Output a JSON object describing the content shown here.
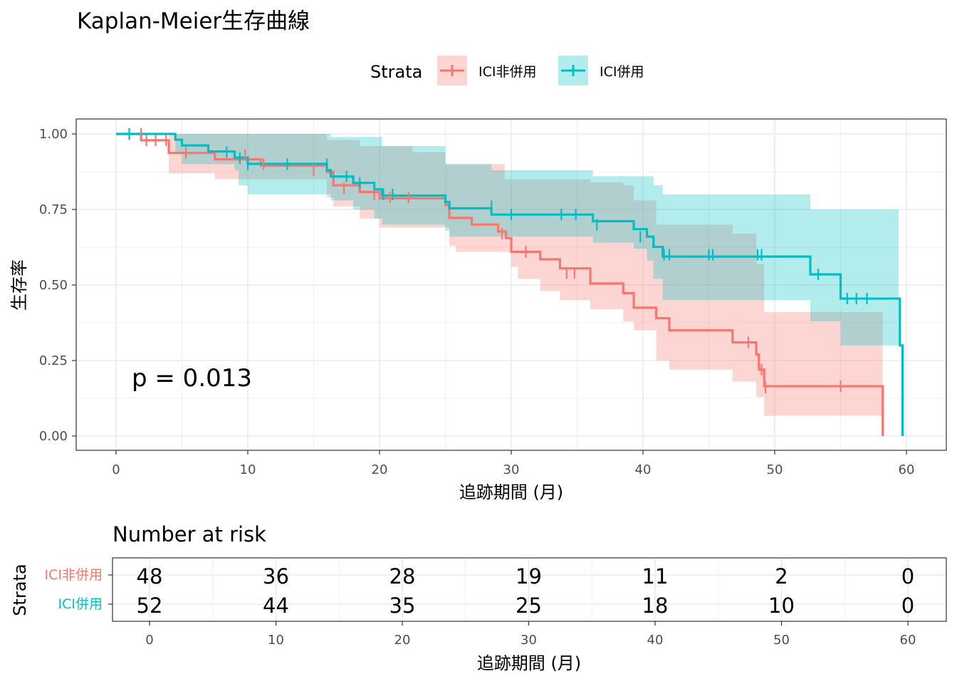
{
  "title": "Kaplan-Meier生存曲線",
  "legend": {
    "title": "Strata",
    "items": [
      {
        "label": "ICI非併用",
        "color": "#F8766D"
      },
      {
        "label": "ICI併用",
        "color": "#00BFC4"
      }
    ]
  },
  "pvalue_text": "p = 0.013",
  "risk_table": {
    "title": "Number at risk",
    "xlabel": "追跡期間 (月)",
    "ylabel": "Strata",
    "time_points": [
      0,
      10,
      20,
      30,
      40,
      50,
      60
    ],
    "rows": [
      {
        "label": "ICI非併用",
        "color": "#F8766D",
        "values": [
          48,
          36,
          28,
          19,
          11,
          2,
          0
        ]
      },
      {
        "label": "ICI併用",
        "color": "#00BFC4",
        "values": [
          52,
          44,
          35,
          25,
          18,
          10,
          0
        ]
      }
    ]
  },
  "chart_data": {
    "type": "line",
    "title": "Kaplan-Meier生存曲線",
    "xlabel": "追跡期間 (月)",
    "ylabel": "生存率",
    "xlim": [
      0,
      60
    ],
    "ylim": [
      0,
      1
    ],
    "x_ticks": [
      0,
      10,
      20,
      30,
      40,
      50,
      60
    ],
    "y_ticks": [
      0,
      0.25,
      0.5,
      0.75,
      1.0
    ],
    "y_tick_labels": [
      "0.00",
      "0.25",
      "0.50",
      "0.75",
      "1.00"
    ],
    "grid": true,
    "legend_position": "top",
    "series": [
      {
        "name": "ICI非併用",
        "color": "#F8766D",
        "steps": [
          [
            0,
            1.0
          ],
          [
            1.9,
            0.979
          ],
          [
            4.0,
            0.937
          ],
          [
            7.5,
            0.916
          ],
          [
            11.0,
            0.895
          ],
          [
            14.0,
            0.895
          ],
          [
            16.0,
            0.874
          ],
          [
            16.5,
            0.83
          ],
          [
            18.5,
            0.808
          ],
          [
            20.0,
            0.787
          ],
          [
            25.0,
            0.765
          ],
          [
            25.3,
            0.722
          ],
          [
            27.0,
            0.7
          ],
          [
            29.0,
            0.677
          ],
          [
            29.6,
            0.655
          ],
          [
            30.0,
            0.61
          ],
          [
            32.2,
            0.585
          ],
          [
            33.7,
            0.555
          ],
          [
            36.0,
            0.505
          ],
          [
            38.5,
            0.473
          ],
          [
            39.3,
            0.425
          ],
          [
            41.0,
            0.39
          ],
          [
            42.0,
            0.35
          ],
          [
            46.8,
            0.31
          ],
          [
            48.6,
            0.27
          ],
          [
            48.8,
            0.22
          ],
          [
            49.2,
            0.165
          ],
          [
            58.2,
            0.165
          ],
          [
            58.2,
            0.0
          ]
        ],
        "censored": [
          [
            1.9,
            1.0
          ],
          [
            2.3,
            0.979
          ],
          [
            3.0,
            0.979
          ],
          [
            3.8,
            0.979
          ],
          [
            5.3,
            0.937
          ],
          [
            9.8,
            0.93
          ],
          [
            11.2,
            0.9
          ],
          [
            15.0,
            0.88
          ],
          [
            17.3,
            0.82
          ],
          [
            19.6,
            0.8
          ],
          [
            20.8,
            0.79
          ],
          [
            22.2,
            0.79
          ],
          [
            29.3,
            0.67
          ],
          [
            31.1,
            0.61
          ],
          [
            34.2,
            0.54
          ],
          [
            34.8,
            0.54
          ],
          [
            48.0,
            0.31
          ],
          [
            49.0,
            0.22
          ],
          [
            49.3,
            0.16
          ],
          [
            55.0,
            0.165
          ]
        ],
        "ci_upper": [
          [
            0,
            1.0
          ],
          [
            4.0,
            1.0
          ],
          [
            7.5,
            1.0
          ],
          [
            9.3,
            1.0
          ],
          [
            16.0,
            0.98
          ],
          [
            18.5,
            0.96
          ],
          [
            22.5,
            0.94
          ],
          [
            25.0,
            0.9
          ],
          [
            27.0,
            0.9
          ],
          [
            29.5,
            0.85
          ],
          [
            36.0,
            0.84
          ],
          [
            38.5,
            0.83
          ],
          [
            39.3,
            0.78
          ],
          [
            41.0,
            0.7
          ],
          [
            46.8,
            0.67
          ],
          [
            48.6,
            0.57
          ],
          [
            49.2,
            0.41
          ],
          [
            58.2,
            0.41
          ]
        ],
        "ci_lower": [
          [
            0,
            1.0
          ],
          [
            4.0,
            0.87
          ],
          [
            7.5,
            0.85
          ],
          [
            14.0,
            0.85
          ],
          [
            16.0,
            0.79
          ],
          [
            16.5,
            0.76
          ],
          [
            18.5,
            0.72
          ],
          [
            20.0,
            0.69
          ],
          [
            25.3,
            0.63
          ],
          [
            25.8,
            0.61
          ],
          [
            30.0,
            0.56
          ],
          [
            30.5,
            0.52
          ],
          [
            32.2,
            0.48
          ],
          [
            33.7,
            0.45
          ],
          [
            36.0,
            0.42
          ],
          [
            38.5,
            0.38
          ],
          [
            39.3,
            0.35
          ],
          [
            41.0,
            0.25
          ],
          [
            42.0,
            0.22
          ],
          [
            46.8,
            0.18
          ],
          [
            48.6,
            0.13
          ],
          [
            49.2,
            0.067
          ],
          [
            58.2,
            0.067
          ]
        ]
      },
      {
        "name": "ICI併用",
        "color": "#00BFC4",
        "steps": [
          [
            0,
            1.0
          ],
          [
            4.5,
            0.981
          ],
          [
            5.0,
            0.962
          ],
          [
            7.0,
            0.942
          ],
          [
            9.0,
            0.922
          ],
          [
            10.0,
            0.901
          ],
          [
            16.0,
            0.88
          ],
          [
            16.3,
            0.859
          ],
          [
            18.0,
            0.838
          ],
          [
            19.6,
            0.817
          ],
          [
            20.2,
            0.796
          ],
          [
            25.0,
            0.775
          ],
          [
            25.3,
            0.754
          ],
          [
            28.5,
            0.733
          ],
          [
            36.2,
            0.711
          ],
          [
            39.3,
            0.685
          ],
          [
            40.3,
            0.66
          ],
          [
            40.8,
            0.626
          ],
          [
            41.5,
            0.594
          ],
          [
            52.7,
            0.535
          ],
          [
            55.0,
            0.455
          ],
          [
            59.5,
            0.3
          ],
          [
            59.7,
            0.0
          ]
        ],
        "censored": [
          [
            1.0,
            1.0
          ],
          [
            8.4,
            0.94
          ],
          [
            9.4,
            0.92
          ],
          [
            10.0,
            0.9
          ],
          [
            13.0,
            0.9
          ],
          [
            16.0,
            0.9
          ],
          [
            17.5,
            0.86
          ],
          [
            18.5,
            0.838
          ],
          [
            20.3,
            0.8
          ],
          [
            21.0,
            0.8
          ],
          [
            28.5,
            0.76
          ],
          [
            30.0,
            0.733
          ],
          [
            33.8,
            0.733
          ],
          [
            34.9,
            0.733
          ],
          [
            36.5,
            0.7
          ],
          [
            39.8,
            0.66
          ],
          [
            41.6,
            0.6
          ],
          [
            42.0,
            0.6
          ],
          [
            45.0,
            0.6
          ],
          [
            45.3,
            0.6
          ],
          [
            48.7,
            0.6
          ],
          [
            49.0,
            0.6
          ],
          [
            53.3,
            0.535
          ],
          [
            55.5,
            0.455
          ],
          [
            56.2,
            0.455
          ],
          [
            57.0,
            0.455
          ]
        ],
        "ci_upper": [
          [
            0,
            1.0
          ],
          [
            16.0,
            1.0
          ],
          [
            16.3,
            0.99
          ],
          [
            20.2,
            0.96
          ],
          [
            25.0,
            0.9
          ],
          [
            28.5,
            0.88
          ],
          [
            36.2,
            0.86
          ],
          [
            39.3,
            0.86
          ],
          [
            40.8,
            0.83
          ],
          [
            41.5,
            0.8
          ],
          [
            52.7,
            0.75
          ],
          [
            55.0,
            0.75
          ],
          [
            59.4,
            0.75
          ],
          [
            59.4,
            0.75
          ]
        ],
        "ci_lower": [
          [
            0,
            1.0
          ],
          [
            4.5,
            0.94
          ],
          [
            5.0,
            0.9
          ],
          [
            9.0,
            0.88
          ],
          [
            9.3,
            0.83
          ],
          [
            10.0,
            0.8
          ],
          [
            16.3,
            0.78
          ],
          [
            18.0,
            0.75
          ],
          [
            19.6,
            0.72
          ],
          [
            20.2,
            0.7
          ],
          [
            25.0,
            0.68
          ],
          [
            25.3,
            0.66
          ],
          [
            28.5,
            0.66
          ],
          [
            36.2,
            0.64
          ],
          [
            39.3,
            0.62
          ],
          [
            40.3,
            0.58
          ],
          [
            40.8,
            0.52
          ],
          [
            41.5,
            0.45
          ],
          [
            52.7,
            0.38
          ],
          [
            55.0,
            0.3
          ],
          [
            59.4,
            0.3
          ]
        ]
      }
    ]
  }
}
